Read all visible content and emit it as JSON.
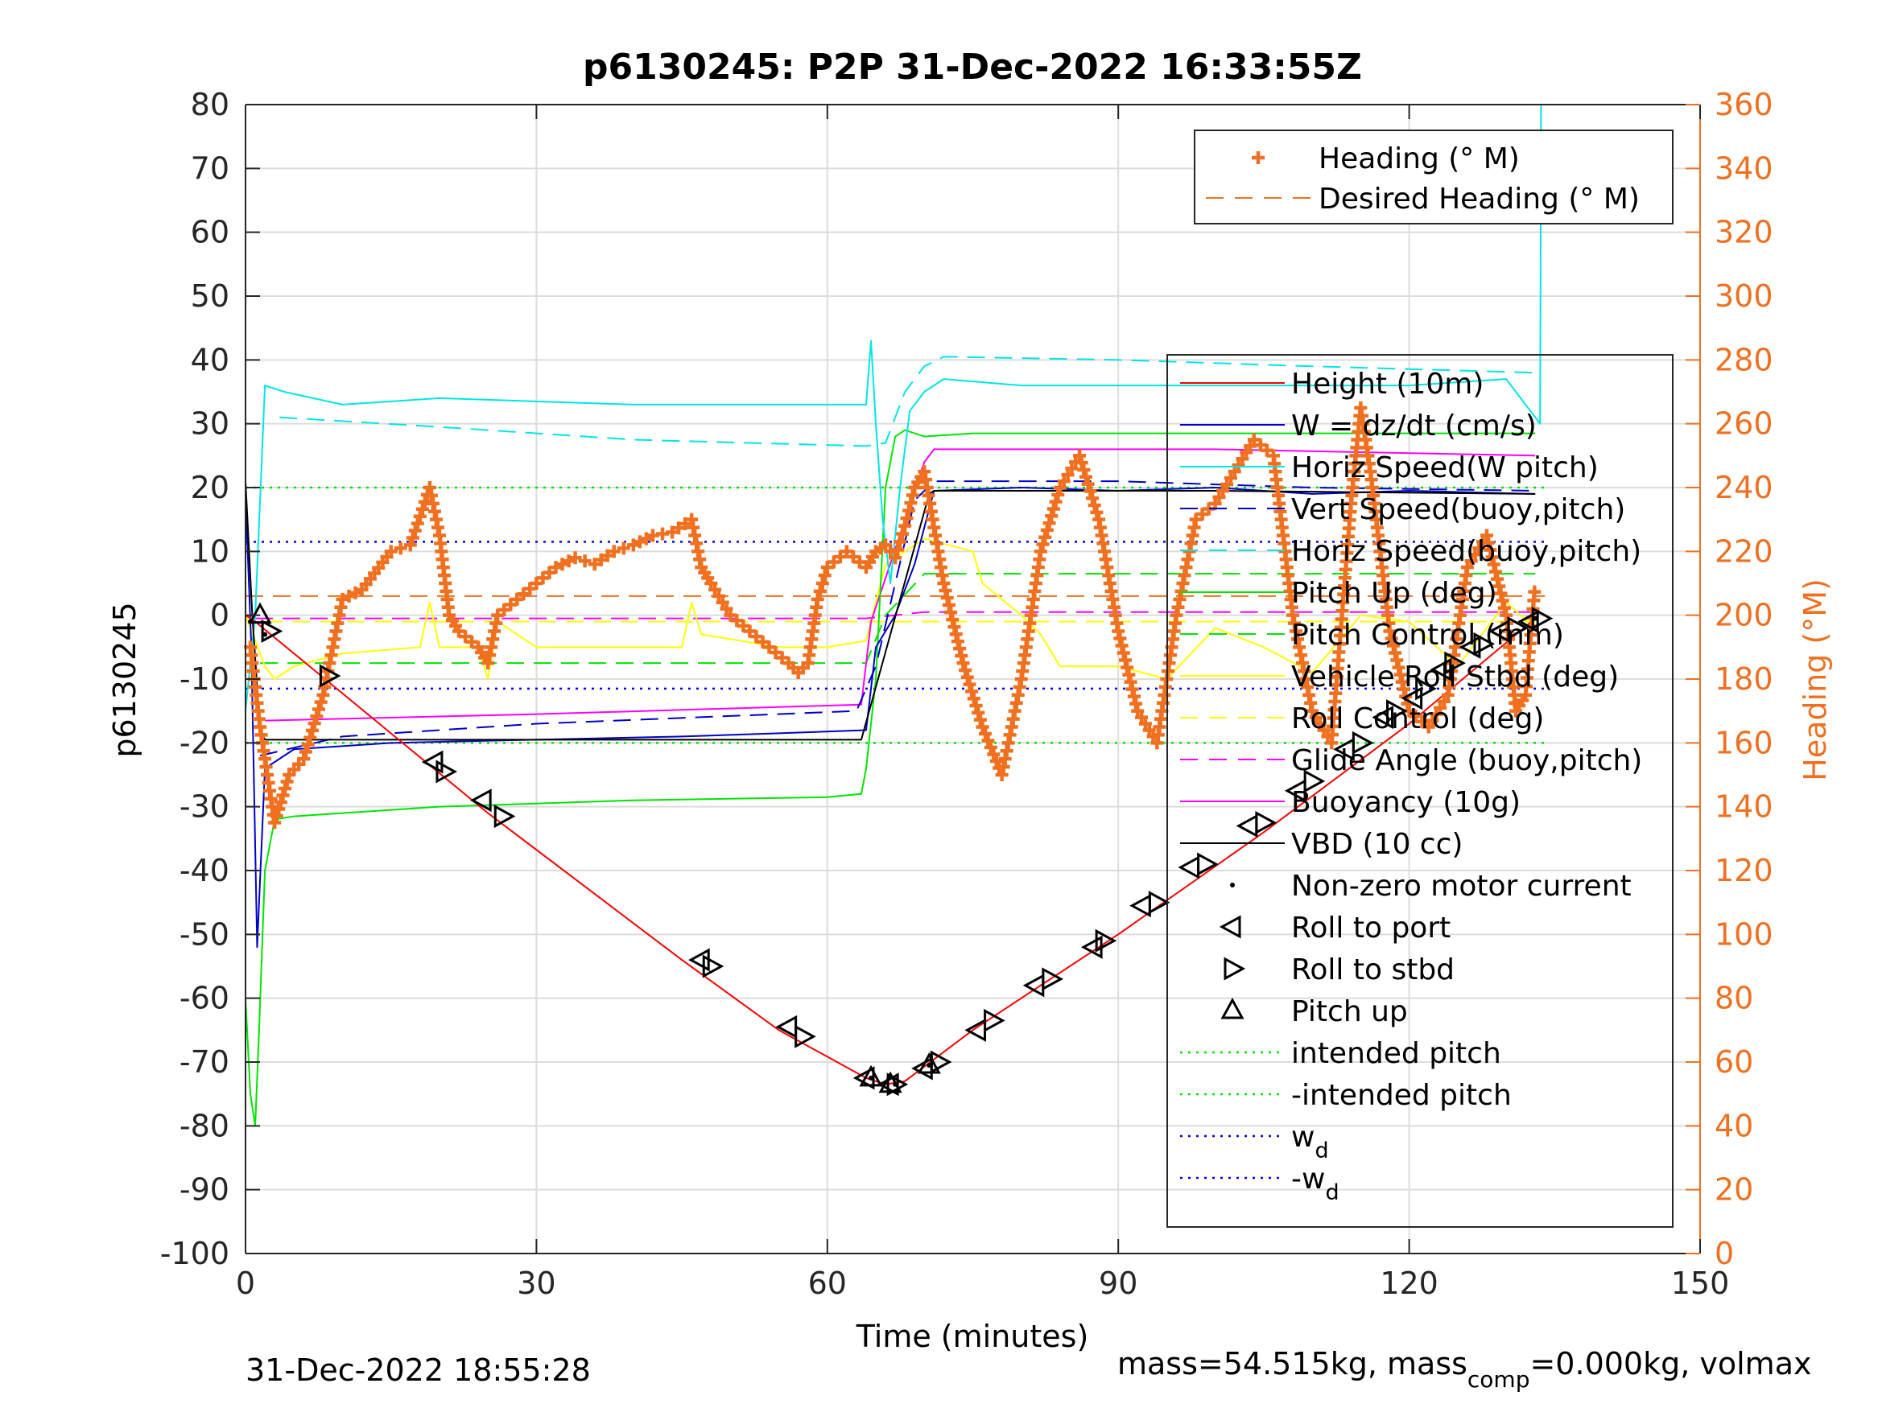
{
  "chart_data": {
    "type": "line",
    "title": "p6130245: P2P 31-Dec-2022 16:33:55Z",
    "xlabel": "Time (minutes)",
    "ylabel": "p6130245",
    "ylabel_right": "Heading (°M)",
    "xlim": [
      0,
      150
    ],
    "ylim": [
      -100,
      80
    ],
    "ylim_right": [
      0,
      360
    ],
    "x_ticks": [
      0,
      30,
      60,
      90,
      120,
      150
    ],
    "y_ticks": [
      80,
      70,
      60,
      50,
      40,
      30,
      20,
      10,
      0,
      -10,
      -20,
      -30,
      -40,
      -50,
      -60,
      -70,
      -80,
      -90,
      -100
    ],
    "y_right_ticks": [
      360,
      340,
      320,
      300,
      280,
      260,
      240,
      220,
      200,
      180,
      160,
      140,
      120,
      100,
      80,
      60,
      40,
      20,
      0
    ],
    "grid": true,
    "footer_left": "31-Dec-2022 18:55:28",
    "footer_right": {
      "prefix": "mass=54.515kg, mass",
      "subscript": "comp",
      "suffix": "=0.000kg, volmax"
    },
    "colors": {
      "axis_right": "#f07020",
      "height": "#ff0000",
      "w": "#0000c8",
      "horiz_speed": "#00e6e6",
      "pitch": "#00e600",
      "roll": "#ffff00",
      "buoyancy": "#ff00ff",
      "vbd": "#000000",
      "heading": "#f07020",
      "intended_pitch": "#00e600",
      "wd": "#0000ff"
    },
    "legend_heading": {
      "placement": "top-right",
      "entries": [
        {
          "label": "Heading (° M)",
          "style": "plus",
          "color": "#f07020"
        },
        {
          "label": "Desired Heading (° M)",
          "style": "dashed",
          "color": "#f07020"
        }
      ]
    },
    "legend_main": {
      "placement": "right",
      "entries": [
        {
          "label": "Height (10m)",
          "style": "solid",
          "color": "#ff0000"
        },
        {
          "label": "W = dz/dt (cm/s)",
          "style": "solid",
          "color": "#0000c8"
        },
        {
          "label": "Horiz Speed(W pitch)",
          "style": "solid",
          "color": "#00e6e6"
        },
        {
          "label": "Vert Speed(buoy,pitch)",
          "style": "dashed",
          "color": "#0000c8"
        },
        {
          "label": "Horiz Speed(buoy,pitch)",
          "style": "dashed",
          "color": "#00e6e6"
        },
        {
          "label": "Pitch Up (deg)",
          "style": "solid",
          "color": "#00e600"
        },
        {
          "label": "Pitch Control (mm)",
          "style": "dashed",
          "color": "#00e600"
        },
        {
          "label": "Vehicle Roll Stbd (deg)",
          "style": "solid",
          "color": "#ffff00"
        },
        {
          "label": "Roll Control (deg)",
          "style": "dashed",
          "color": "#ffff00"
        },
        {
          "label": "Glide Angle (buoy,pitch)",
          "style": "dashed",
          "color": "#ff00ff"
        },
        {
          "label": "Buoyancy (10g)",
          "style": "solid",
          "color": "#ff00ff"
        },
        {
          "label": "VBD (10 cc)",
          "style": "solid",
          "color": "#000000"
        },
        {
          "label": "Non-zero motor current",
          "style": "dot",
          "color": "#000000"
        },
        {
          "label": "Roll to port",
          "style": "tri-left",
          "color": "#000000"
        },
        {
          "label": "Roll to stbd",
          "style": "tri-right",
          "color": "#000000"
        },
        {
          "label": "Pitch up",
          "style": "tri-up",
          "color": "#000000"
        },
        {
          "label": "intended pitch",
          "style": "dotted",
          "color": "#00e600"
        },
        {
          "label": "-intended pitch",
          "style": "dotted",
          "color": "#00e600"
        },
        {
          "label": "w",
          "sub": "d",
          "style": "dotted",
          "color": "#0000ff"
        },
        {
          "label": "-w",
          "sub": "d",
          "style": "dotted",
          "color": "#0000ff"
        }
      ]
    },
    "series": [
      {
        "name": "Height (10m)",
        "key": "height",
        "axis": "left",
        "x": [
          0,
          1,
          25,
          45,
          55,
          64,
          66,
          68,
          75,
          90,
          105,
          120,
          133
        ],
        "y": [
          0,
          -1,
          -31,
          -54,
          -65,
          -72.5,
          -73.5,
          -73,
          -65,
          -50,
          -34,
          -17,
          -0.5
        ]
      },
      {
        "name": "W = dz/dt (cm/s)",
        "key": "w",
        "axis": "left",
        "x": [
          0,
          0.6,
          1.2,
          2,
          5,
          15,
          30,
          45,
          55,
          64,
          65,
          67,
          69,
          71,
          80,
          90,
          100,
          110,
          120,
          133
        ],
        "y": [
          19,
          -5,
          -52,
          -24,
          -21,
          -20,
          -19.5,
          -19,
          -18.5,
          -18,
          -5,
          0,
          8,
          19.5,
          20,
          19.5,
          20,
          19,
          19.5,
          19
        ]
      },
      {
        "name": "Horiz Speed(W pitch)",
        "key": "hs_w",
        "axis": "left",
        "x": [
          0,
          1,
          2,
          4,
          10,
          20,
          40,
          60,
          64,
          64.5,
          65,
          65.7,
          66.5,
          67.5,
          68.5,
          70,
          72,
          80,
          90,
          100,
          110,
          120,
          130,
          133.5,
          133.6,
          133.8
        ],
        "y": [
          -15,
          0,
          36,
          35,
          33,
          34,
          33,
          33,
          33,
          43,
          30,
          15,
          5,
          20,
          32,
          35,
          37,
          36,
          36,
          36,
          36,
          36,
          37,
          30,
          80,
          80
        ]
      },
      {
        "name": "Vert Speed(buoy,pitch)",
        "key": "vs_b",
        "axis": "left",
        "x": [
          1.5,
          10,
          30,
          63,
          65,
          67,
          69,
          71,
          90,
          110,
          133
        ],
        "y": [
          -22,
          -19,
          -17,
          -15,
          -8,
          5,
          18,
          21,
          21,
          20,
          19.5
        ]
      },
      {
        "name": "Horiz Speed(buoy,pitch)",
        "key": "hs_b",
        "axis": "left",
        "x": [
          3.5,
          20,
          40,
          64,
          66,
          68,
          70,
          72,
          90,
          110,
          133
        ],
        "y": [
          31,
          29.5,
          27.5,
          26.5,
          27,
          35,
          39,
          40.5,
          40,
          39,
          38
        ]
      },
      {
        "name": "Pitch Up (deg)",
        "key": "pitch",
        "axis": "left",
        "x": [
          0,
          0.5,
          1,
          1.4,
          2,
          3,
          5,
          20,
          40,
          60,
          63.5,
          64,
          65,
          66,
          67,
          68,
          70,
          75,
          90,
          110,
          133
        ],
        "y": [
          -60,
          -75,
          -80,
          -65,
          -40,
          -32,
          -31.5,
          -30,
          -29,
          -28.5,
          -28,
          -24,
          -10,
          20,
          28,
          29,
          28,
          28.5,
          28.5,
          28.5,
          28.5
        ]
      },
      {
        "name": "Pitch Control (mm)",
        "key": "pitch_ctrl",
        "axis": "left",
        "x": [
          1.5,
          64,
          66,
          70,
          133
        ],
        "y": [
          -7.5,
          -7.5,
          0,
          6.5,
          6.5
        ]
      },
      {
        "name": "Vehicle Roll Stbd (deg)",
        "key": "roll",
        "axis": "left",
        "x": [
          0,
          2,
          3,
          5,
          10,
          18,
          19,
          20,
          24,
          25,
          26,
          30,
          45,
          46,
          47,
          55,
          60,
          64,
          66,
          70,
          75,
          76,
          80,
          82,
          84,
          90,
          95,
          100,
          105,
          110,
          115,
          120,
          125,
          130,
          133
        ],
        "y": [
          0,
          -8,
          -10,
          -8,
          -6,
          -5,
          2,
          -5,
          -5,
          -10,
          -1,
          -5,
          -5,
          2,
          -3,
          -5,
          -5,
          -4,
          8,
          12,
          10,
          5,
          0,
          -3,
          -8,
          -8,
          -10,
          -2,
          -5,
          -9,
          0,
          -1,
          -8,
          2,
          -2
        ]
      },
      {
        "name": "Roll Control (deg)",
        "key": "roll_ctrl",
        "axis": "left",
        "x": [
          2,
          133
        ],
        "y": [
          -1,
          -1
        ]
      },
      {
        "name": "Glide Angle (buoy,pitch)",
        "key": "glide",
        "axis": "left",
        "x": [
          1,
          64,
          67,
          70,
          133
        ],
        "y": [
          -0.5,
          -0.5,
          0,
          0.5,
          0.5
        ]
      },
      {
        "name": "Buoyancy (10g)",
        "key": "buoy",
        "axis": "left",
        "x": [
          2,
          30,
          63.5,
          64.5,
          70,
          71,
          100,
          133
        ],
        "y": [
          -16.5,
          -15.5,
          -14,
          -1,
          24,
          26,
          26,
          25
        ]
      },
      {
        "name": "VBD (10 cc)",
        "key": "vbd",
        "axis": "left",
        "x": [
          0,
          0.7,
          1.5,
          2,
          30,
          63.5,
          70.5,
          71,
          100,
          133
        ],
        "y": [
          21,
          0,
          -18,
          -19.5,
          -19.5,
          -19.5,
          19,
          19.5,
          19.5,
          19
        ]
      },
      {
        "name": "Heading (° M)",
        "key": "heading",
        "axis": "right",
        "x": [
          0.5,
          1.5,
          3,
          4.5,
          6,
          8,
          10,
          12,
          15,
          17,
          19,
          20,
          21,
          22,
          24,
          25,
          26,
          28,
          30,
          32,
          34,
          36,
          38,
          40,
          42,
          44,
          46,
          47,
          48,
          50,
          52,
          54,
          56,
          57,
          58,
          59,
          60,
          62,
          64,
          65,
          66,
          67,
          68,
          69,
          70,
          72,
          74,
          76,
          78,
          80,
          82,
          84,
          86,
          88,
          90,
          92,
          94,
          96,
          98,
          100,
          102,
          104,
          106,
          108,
          110,
          112,
          114,
          115,
          116,
          118,
          120,
          122,
          124,
          126,
          128,
          130,
          131,
          132,
          133
        ],
        "y": [
          190,
          165,
          135,
          150,
          155,
          175,
          205,
          208,
          220,
          222,
          240,
          225,
          200,
          195,
          190,
          185,
          200,
          205,
          210,
          215,
          218,
          216,
          220,
          222,
          225,
          226,
          230,
          215,
          210,
          200,
          195,
          190,
          185,
          182,
          185,
          205,
          215,
          220,
          215,
          220,
          222,
          218,
          228,
          240,
          245,
          210,
          185,
          165,
          150,
          180,
          220,
          240,
          250,
          230,
          195,
          170,
          160,
          200,
          230,
          235,
          245,
          255,
          250,
          200,
          170,
          160,
          235,
          265,
          245,
          195,
          170,
          165,
          175,
          215,
          225,
          200,
          170,
          175,
          210
        ]
      },
      {
        "name": "Desired Heading (° M)",
        "key": "desired_heading",
        "axis": "right",
        "x": [
          0,
          134
        ],
        "y": [
          206,
          206
        ]
      },
      {
        "name": "intended pitch",
        "key": "ip",
        "axis": "left",
        "x": [
          0,
          134
        ],
        "y": [
          20,
          20
        ]
      },
      {
        "name": "-intended pitch",
        "key": "nip",
        "axis": "left",
        "x": [
          0,
          134
        ],
        "y": [
          -20,
          -20
        ]
      },
      {
        "name": "w_d",
        "key": "wd",
        "axis": "left",
        "x": [
          0,
          134
        ],
        "y": [
          11.5,
          11.5
        ]
      },
      {
        "name": "-w_d",
        "key": "nwd",
        "axis": "left",
        "x": [
          0,
          134
        ],
        "y": [
          -11.5,
          -11.5
        ]
      }
    ],
    "markers": {
      "pitch_up": [
        [
          1.5,
          0
        ],
        [
          64.5,
          -72.5
        ],
        [
          66.5,
          -73.5
        ],
        [
          70.5,
          -70.5
        ]
      ],
      "roll_to_port": [
        [
          19.5,
          -23
        ],
        [
          24.5,
          -29
        ],
        [
          47,
          -54
        ],
        [
          56,
          -64.5
        ],
        [
          64,
          -72.5
        ],
        [
          66.5,
          -73.5
        ],
        [
          70,
          -71
        ],
        [
          75.5,
          -65
        ],
        [
          81.5,
          -58
        ],
        [
          87.5,
          -52
        ],
        [
          92.5,
          -45.5
        ],
        [
          97.5,
          -39.5
        ],
        [
          103.5,
          -33
        ],
        [
          108.5,
          -27.5
        ],
        [
          113.5,
          -21
        ],
        [
          117.5,
          -16
        ],
        [
          120.5,
          -13
        ],
        [
          123.5,
          -8.5
        ],
        [
          126.5,
          -5
        ],
        [
          129.5,
          -2.5
        ],
        [
          132.5,
          -1
        ]
      ],
      "roll_to_stbd": [
        [
          2.5,
          -2.5
        ],
        [
          8.5,
          -9.5
        ],
        [
          20.5,
          -24.5
        ],
        [
          26.5,
          -31.5
        ],
        [
          48,
          -55
        ],
        [
          57.5,
          -66
        ],
        [
          67,
          -73.5
        ],
        [
          71.5,
          -70
        ],
        [
          77,
          -63.5
        ],
        [
          83,
          -57
        ],
        [
          88.5,
          -51
        ],
        [
          94,
          -45
        ],
        [
          99,
          -39
        ],
        [
          105,
          -32.5
        ],
        [
          110,
          -26
        ],
        [
          115,
          -20
        ],
        [
          118.5,
          -15
        ],
        [
          121.5,
          -11.5
        ],
        [
          124.5,
          -7.5
        ],
        [
          127.5,
          -4.5
        ],
        [
          131,
          -2
        ],
        [
          133.5,
          -0.5
        ]
      ],
      "motor_current": [
        [
          0.5,
          -1
        ],
        [
          2,
          -3
        ],
        [
          64.5,
          -72.5
        ],
        [
          67,
          -73.5
        ],
        [
          70.5,
          -70.5
        ],
        [
          133,
          -0.5
        ]
      ]
    }
  }
}
